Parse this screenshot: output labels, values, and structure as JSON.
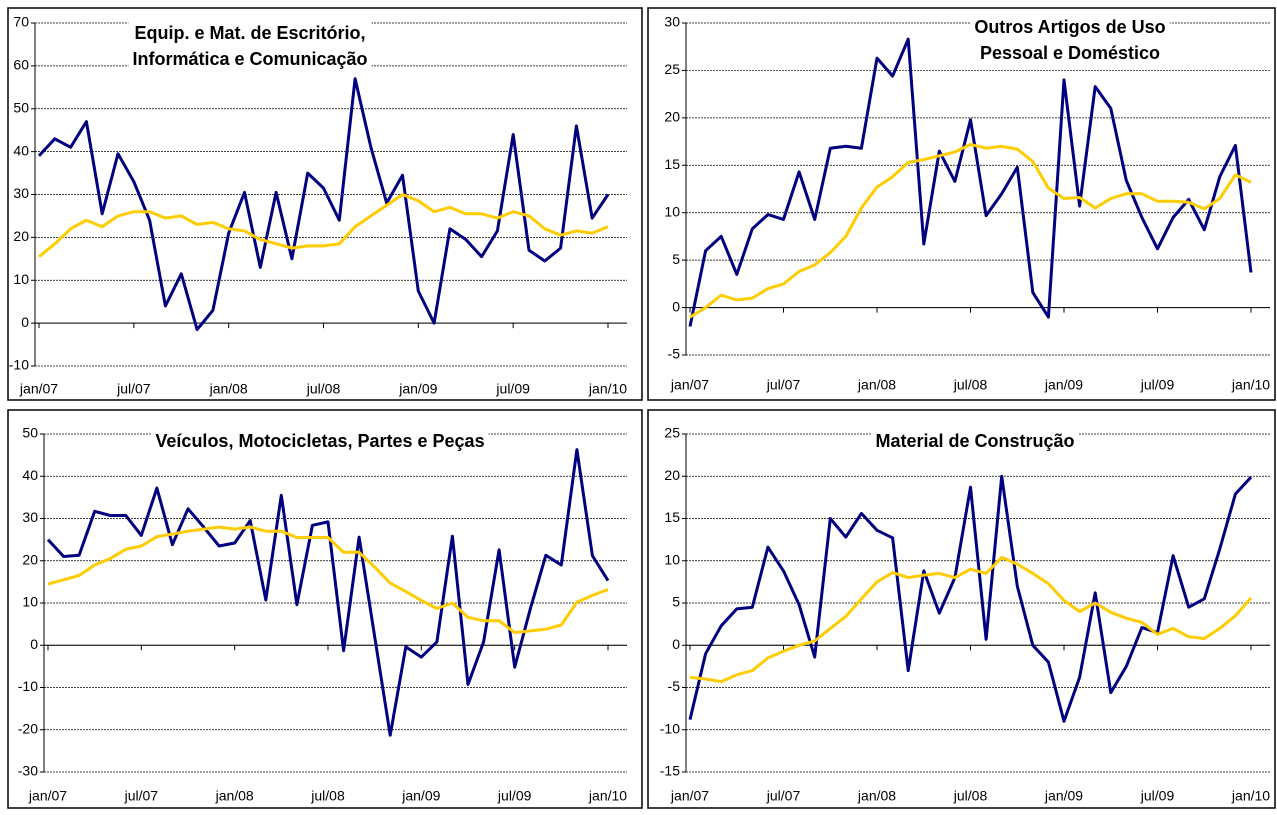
{
  "chart_data": [
    {
      "type": "line",
      "title": [
        "Equip. e Mat. de Escritório,",
        "Informática e Comunicação"
      ],
      "categories": [
        "jan/07",
        null,
        null,
        null,
        null,
        null,
        "jul/07",
        null,
        null,
        null,
        null,
        null,
        "jan/08",
        null,
        null,
        null,
        null,
        null,
        "jul/08",
        null,
        null,
        null,
        null,
        null,
        "jan/09",
        null,
        null,
        null,
        null,
        null,
        "jul/09",
        null,
        null,
        null,
        null,
        null,
        "jan/10"
      ],
      "series": [
        {
          "color": "#000080",
          "values": [
            39,
            43,
            41,
            47,
            25.5,
            39.5,
            33,
            24,
            4,
            11.5,
            -1.5,
            3,
            21,
            30.5,
            13,
            30.5,
            15,
            35,
            31.5,
            24,
            57,
            41,
            28,
            34.5,
            7.5,
            0,
            22,
            19.5,
            15.5,
            21.5,
            44,
            17,
            14.5,
            17.5,
            46,
            24.5,
            30
          ]
        },
        {
          "color": "#FFCC00",
          "values": [
            15.5,
            18.5,
            22,
            24,
            22.5,
            25,
            26,
            26,
            24.5,
            25,
            23,
            23.5,
            22,
            21.5,
            19.5,
            18.5,
            17.5,
            18,
            18,
            18.5,
            22.5,
            25,
            27.5,
            30,
            28.5,
            26,
            27,
            25.5,
            25.5,
            24.5,
            26,
            25,
            22,
            20.5,
            21.5,
            21,
            22.5
          ]
        }
      ],
      "ylim": [
        -10,
        70
      ],
      "yticks": [
        -10,
        0,
        10,
        20,
        30,
        40,
        50,
        60,
        70
      ],
      "grid": true
    },
    {
      "type": "line",
      "title": [
        "Outros Artigos de Uso",
        "Pessoal e Doméstico"
      ],
      "categories": [
        "jan/07",
        null,
        null,
        null,
        null,
        null,
        "jul/07",
        null,
        null,
        null,
        null,
        null,
        "jan/08",
        null,
        null,
        null,
        null,
        null,
        "jul/08",
        null,
        null,
        null,
        null,
        null,
        "jan/09",
        null,
        null,
        null,
        null,
        null,
        "jul/09",
        null,
        null,
        null,
        null,
        null,
        "jan/10"
      ],
      "series": [
        {
          "color": "#000080",
          "values": [
            -2,
            6,
            7.5,
            3.5,
            8.3,
            9.8,
            9.3,
            14.3,
            9.3,
            16.8,
            17,
            16.8,
            26.3,
            24.4,
            28.3,
            6.7,
            16.5,
            13.3,
            19.8,
            9.7,
            12,
            14.8,
            1.6,
            -1,
            24,
            10.7,
            23.3,
            21,
            13.4,
            9.5,
            6.2,
            9.5,
            11.4,
            8.2,
            13.8,
            17.1,
            3.7
          ]
        },
        {
          "color": "#FFCC00",
          "values": [
            -1,
            0,
            1.3,
            0.8,
            1,
            2,
            2.5,
            3.8,
            4.5,
            5.8,
            7.5,
            10.5,
            12.7,
            13.8,
            15.3,
            15.6,
            16,
            16.4,
            17.2,
            16.8,
            17,
            16.7,
            15.4,
            12.6,
            11.5,
            11.6,
            10.5,
            11.5,
            12,
            12,
            11.2,
            11.2,
            11.1,
            10.4,
            11.5,
            14,
            13.2
          ]
        }
      ],
      "ylim": [
        -5,
        30
      ],
      "yticks": [
        -5,
        0,
        5,
        10,
        15,
        20,
        25,
        30
      ],
      "grid": true
    },
    {
      "type": "line",
      "title": [
        "Veículos, Motocicletas, Partes e Peças"
      ],
      "categories": [
        "jan/07",
        null,
        null,
        null,
        null,
        null,
        "jul/07",
        null,
        null,
        null,
        null,
        null,
        "jan/08",
        null,
        null,
        null,
        null,
        null,
        "jul/08",
        null,
        null,
        null,
        null,
        null,
        "jan/09",
        null,
        null,
        null,
        null,
        null,
        "jul/09",
        null,
        null,
        null,
        null,
        null,
        "jan/10"
      ],
      "series": [
        {
          "color": "#000080",
          "values": [
            25,
            21,
            21.3,
            31.7,
            30.7,
            30.7,
            26,
            37.2,
            23.8,
            32.3,
            28,
            23.5,
            24.2,
            29.5,
            10.7,
            35.5,
            9.6,
            28.4,
            29.2,
            -1.3,
            25.6,
            2,
            -21.3,
            -0.4,
            -2.8,
            0.8,
            25.8,
            -9.3,
            0.8,
            22.6,
            -5.2,
            8.5,
            21.3,
            19,
            46.3,
            21.2,
            15.3
          ]
        },
        {
          "color": "#FFCC00",
          "values": [
            14.5,
            15.5,
            16.5,
            19,
            20.5,
            22.7,
            23.5,
            25.7,
            26.3,
            27,
            27.5,
            28,
            27.5,
            28,
            27,
            27,
            25.5,
            25.5,
            25.5,
            22,
            22,
            18.5,
            14.7,
            12.7,
            10.6,
            8.7,
            10,
            6.6,
            5.8,
            5.8,
            3,
            3.4,
            3.8,
            4.8,
            10.2,
            11.8,
            13.2
          ]
        }
      ],
      "ylim": [
        -30,
        50
      ],
      "yticks": [
        -30,
        -20,
        -10,
        0,
        10,
        20,
        30,
        40,
        50
      ],
      "grid": true
    },
    {
      "type": "line",
      "title": [
        "Material de Construção"
      ],
      "categories": [
        "jan/07",
        null,
        null,
        null,
        null,
        null,
        "jul/07",
        null,
        null,
        null,
        null,
        null,
        "jan/08",
        null,
        null,
        null,
        null,
        null,
        "jul/08",
        null,
        null,
        null,
        null,
        null,
        "jan/09",
        null,
        null,
        null,
        null,
        null,
        "jul/09",
        null,
        null,
        null,
        null,
        null,
        "jan/10"
      ],
      "series": [
        {
          "color": "#000080",
          "values": [
            -8.8,
            -1,
            2.3,
            4.3,
            4.5,
            11.6,
            8.8,
            4.8,
            -1.4,
            15,
            12.8,
            15.6,
            13.6,
            12.7,
            -3,
            8.8,
            3.8,
            8,
            18.7,
            0.7,
            20,
            7,
            0,
            -2,
            -9,
            -3.8,
            6.2,
            -5.6,
            -2.5,
            2.1,
            1.5,
            10.6,
            4.5,
            5.5,
            11.4,
            17.9,
            19.9
          ]
        },
        {
          "color": "#FFCC00",
          "values": [
            -3.8,
            -4,
            -4.3,
            -3.5,
            -3,
            -1.5,
            -0.7,
            0,
            0.5,
            2,
            3.4,
            5.5,
            7.5,
            8.6,
            8,
            8.3,
            8.5,
            8,
            9,
            8.5,
            10.4,
            9.6,
            8.5,
            7.3,
            5.3,
            4,
            5,
            3.9,
            3.2,
            2.7,
            1.3,
            2,
            1,
            0.8,
            2,
            3.5,
            5.6
          ]
        }
      ],
      "ylim": [
        -15,
        25
      ],
      "yticks": [
        -15,
        -10,
        -5,
        0,
        5,
        10,
        15,
        20,
        25
      ],
      "grid": true
    }
  ]
}
